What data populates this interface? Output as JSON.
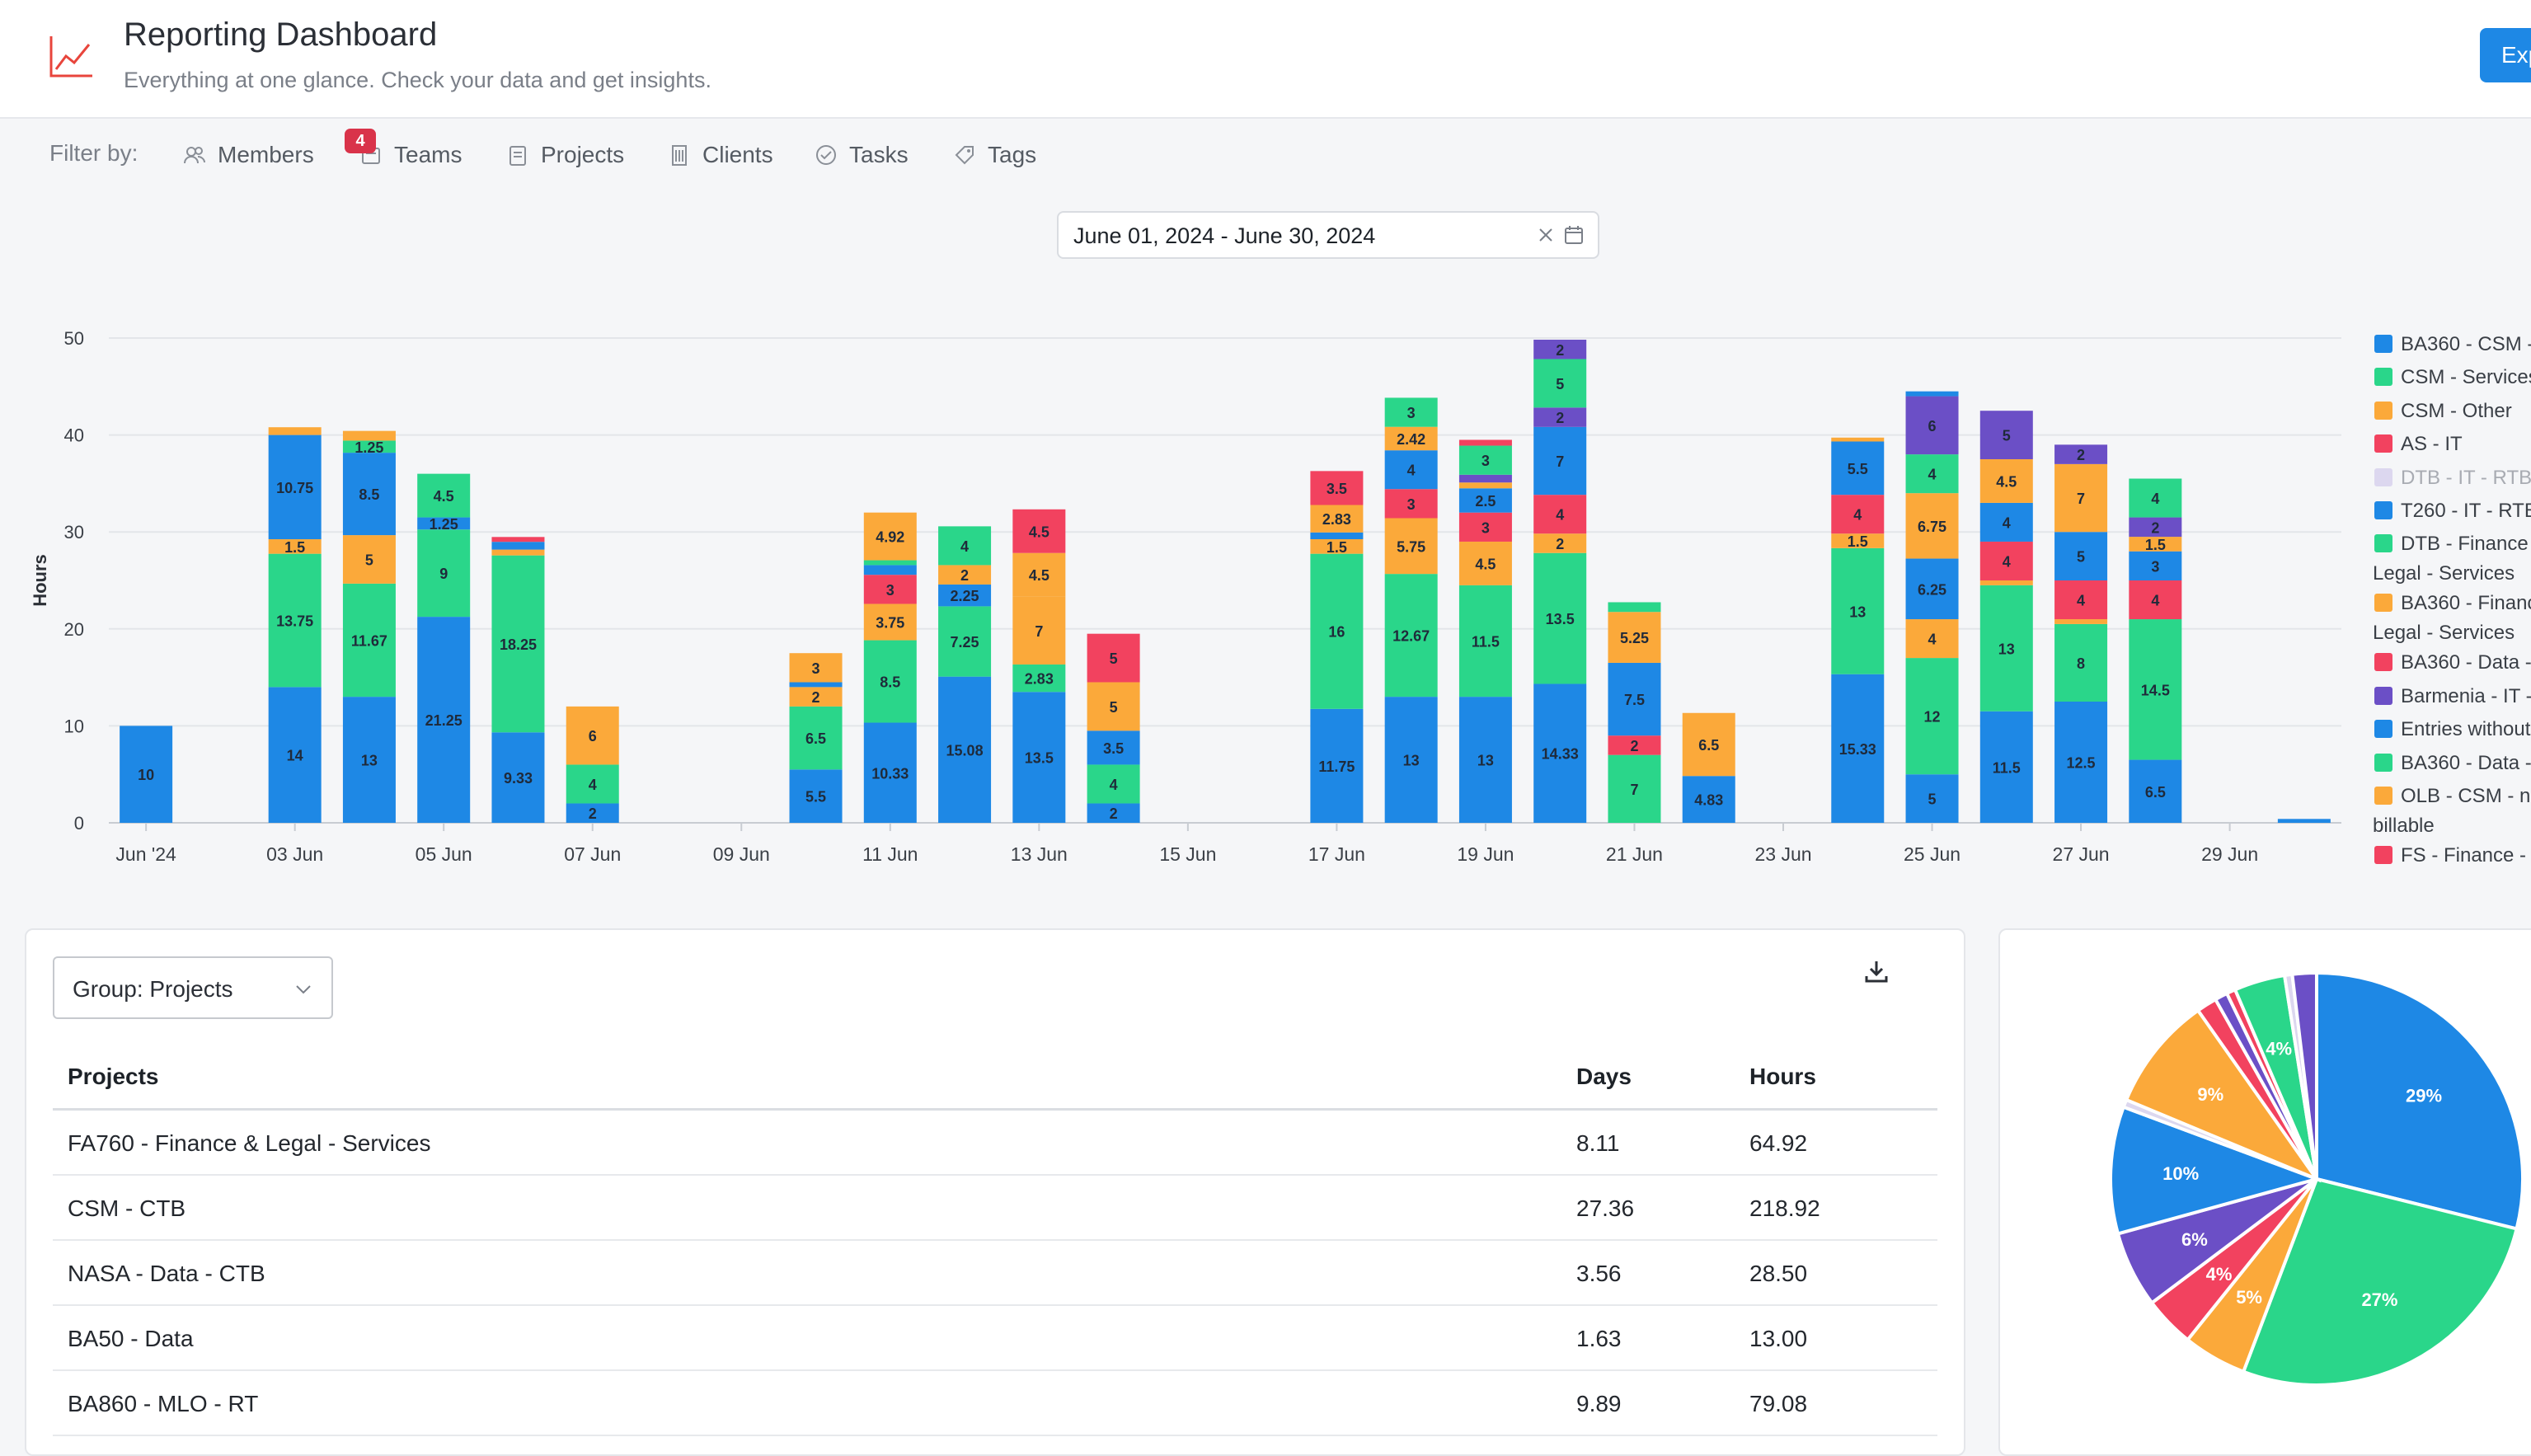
{
  "header": {
    "title": "Reporting Dashboard",
    "subtitle": "Everything at one glance. Check your data and get insights.",
    "export_label": "Exp"
  },
  "filters": {
    "label": "Filter by:",
    "items": [
      "Members",
      "Teams",
      "Projects",
      "Clients",
      "Tasks",
      "Tags"
    ],
    "teams_badge": "4"
  },
  "date_range": {
    "value": "June 01, 2024 - June 30, 2024"
  },
  "colors": {
    "blue": "#1e88e5",
    "green": "#2ad68a",
    "orange": "#fba93a",
    "red": "#f2425f",
    "lavender": "#dcd7ef",
    "purple": "#6b4fc6",
    "accent": "#1e88e5",
    "logo_red": "#e8453c"
  },
  "chart_data": {
    "type": "bar",
    "stacked": true,
    "ylabel": "Hours",
    "ylim": [
      0,
      50
    ],
    "yticks": [
      0,
      10,
      20,
      30,
      40,
      50
    ],
    "grid": true,
    "legend_position": "right",
    "xtick_labels": [
      "Jun '24",
      "03 Jun",
      "05 Jun",
      "07 Jun",
      "09 Jun",
      "11 Jun",
      "13 Jun",
      "15 Jun",
      "17 Jun",
      "19 Jun",
      "21 Jun",
      "23 Jun",
      "25 Jun",
      "27 Jun",
      "29 Jun"
    ],
    "categories": [
      "01 Jun",
      "02 Jun",
      "03 Jun",
      "04 Jun",
      "05 Jun",
      "06 Jun",
      "07 Jun",
      "08 Jun",
      "09 Jun",
      "10 Jun",
      "11 Jun",
      "12 Jun",
      "13 Jun",
      "14 Jun",
      "15 Jun",
      "16 Jun",
      "17 Jun",
      "18 Jun",
      "19 Jun",
      "20 Jun",
      "21 Jun",
      "22 Jun",
      "23 Jun",
      "24 Jun",
      "25 Jun",
      "26 Jun",
      "27 Jun",
      "28 Jun",
      "29 Jun",
      "30 Jun"
    ],
    "legend": [
      {
        "name": "BA360 - CSM -",
        "color": "#1e88e5"
      },
      {
        "name": "CSM - Services",
        "color": "#2ad68a"
      },
      {
        "name": "CSM - Other",
        "color": "#fba93a"
      },
      {
        "name": "AS - IT",
        "color": "#f2425f"
      },
      {
        "name": "DTB - IT - RTB",
        "color": "#dcd7ef"
      },
      {
        "name": "T260 - IT - RTB",
        "color": "#1e88e5"
      },
      {
        "name": "DTB - Finance",
        "line2": "Legal - Services",
        "color": "#2ad68a"
      },
      {
        "name": "BA360 - Finance",
        "line2": "Legal - Services",
        "color": "#fba93a"
      },
      {
        "name": "BA360 - Data -",
        "color": "#f2425f"
      },
      {
        "name": "Barmenia - IT -",
        "color": "#6b4fc6"
      },
      {
        "name": "Entries without",
        "color": "#1e88e5"
      },
      {
        "name": "BA360 - Data -",
        "color": "#2ad68a"
      },
      {
        "name": "OLB - CSM - n",
        "line2": "billable",
        "color": "#fba93a"
      },
      {
        "name": "FS - Finance -",
        "color": "#f2425f"
      }
    ],
    "bars": [
      {
        "day": 1,
        "segments": [
          {
            "c": "blue",
            "v": 10,
            "label": "10"
          }
        ]
      },
      {
        "day": 2,
        "segments": []
      },
      {
        "day": 3,
        "segments": [
          {
            "c": "blue",
            "v": 14,
            "label": "14"
          },
          {
            "c": "green",
            "v": 13.75,
            "label": "13.75"
          },
          {
            "c": "orange",
            "v": 1.5,
            "label": "1.5"
          },
          {
            "c": "blue",
            "v": 10.75,
            "label": "10.75"
          },
          {
            "c": "orange",
            "v": 0.8
          }
        ]
      },
      {
        "day": 4,
        "segments": [
          {
            "c": "blue",
            "v": 13,
            "label": "13"
          },
          {
            "c": "green",
            "v": 11.67,
            "label": "11.67"
          },
          {
            "c": "orange",
            "v": 5,
            "label": "5"
          },
          {
            "c": "blue",
            "v": 8.5,
            "label": "8.5"
          },
          {
            "c": "green",
            "v": 1.25,
            "label": "1.25"
          },
          {
            "c": "orange",
            "v": 1
          }
        ]
      },
      {
        "day": 5,
        "segments": [
          {
            "c": "blue",
            "v": 21.25,
            "label": "21.25"
          },
          {
            "c": "green",
            "v": 9,
            "label": "9"
          },
          {
            "c": "blue",
            "v": 1.25,
            "label": "1.25"
          },
          {
            "c": "green",
            "v": 4.5,
            "label": "4.5"
          }
        ]
      },
      {
        "day": 6,
        "segments": [
          {
            "c": "blue",
            "v": 9.33,
            "label": "9.33"
          },
          {
            "c": "green",
            "v": 18.25,
            "label": "18.25"
          },
          {
            "c": "orange",
            "v": 0.6
          },
          {
            "c": "blue",
            "v": 0.8
          },
          {
            "c": "red",
            "v": 0.5
          }
        ]
      },
      {
        "day": 7,
        "segments": [
          {
            "c": "blue",
            "v": 2,
            "label": "2"
          },
          {
            "c": "green",
            "v": 4,
            "label": "4"
          },
          {
            "c": "orange",
            "v": 6,
            "label": "6"
          }
        ]
      },
      {
        "day": 8,
        "segments": []
      },
      {
        "day": 9,
        "segments": []
      },
      {
        "day": 10,
        "segments": [
          {
            "c": "blue",
            "v": 5.5,
            "label": "5.5"
          },
          {
            "c": "green",
            "v": 6.5,
            "label": "6.5"
          },
          {
            "c": "orange",
            "v": 2,
            "label": "2"
          },
          {
            "c": "blue",
            "v": 0.5
          },
          {
            "c": "orange",
            "v": 3,
            "label": "3"
          }
        ]
      },
      {
        "day": 11,
        "segments": [
          {
            "c": "blue",
            "v": 10.33,
            "label": "10.33"
          },
          {
            "c": "green",
            "v": 8.5,
            "label": "8.5"
          },
          {
            "c": "orange",
            "v": 3.75,
            "label": "3.75"
          },
          {
            "c": "red",
            "v": 3,
            "label": "3"
          },
          {
            "c": "blue",
            "v": 1
          },
          {
            "c": "green",
            "v": 0.5
          },
          {
            "c": "orange",
            "v": 4.92,
            "label": "4.92"
          }
        ]
      },
      {
        "day": 12,
        "segments": [
          {
            "c": "blue",
            "v": 15.08,
            "label": "15.08"
          },
          {
            "c": "green",
            "v": 7.25,
            "label": "7.25"
          },
          {
            "c": "blue",
            "v": 2.25,
            "label": "2.25"
          },
          {
            "c": "orange",
            "v": 2,
            "label": "2"
          },
          {
            "c": "green",
            "v": 4,
            "label": "4"
          }
        ]
      },
      {
        "day": 13,
        "segments": [
          {
            "c": "blue",
            "v": 13.5,
            "label": "13.5"
          },
          {
            "c": "green",
            "v": 2.83,
            "label": "2.83"
          },
          {
            "c": "orange",
            "v": 7,
            "label": "7"
          },
          {
            "c": "orange",
            "v": 4.5,
            "label": "4.5"
          },
          {
            "c": "red",
            "v": 4.5,
            "label": "4.5"
          }
        ]
      },
      {
        "day": 14,
        "segments": [
          {
            "c": "blue",
            "v": 2,
            "label": "2"
          },
          {
            "c": "green",
            "v": 4,
            "label": "4"
          },
          {
            "c": "blue",
            "v": 3.5,
            "label": "3.5"
          },
          {
            "c": "orange",
            "v": 5,
            "label": "5"
          },
          {
            "c": "red",
            "v": 5,
            "label": "5"
          }
        ]
      },
      {
        "day": 15,
        "segments": []
      },
      {
        "day": 16,
        "segments": []
      },
      {
        "day": 17,
        "segments": [
          {
            "c": "blue",
            "v": 11.75,
            "label": "11.75"
          },
          {
            "c": "green",
            "v": 16,
            "label": "16"
          },
          {
            "c": "orange",
            "v": 1.5,
            "label": "1.5"
          },
          {
            "c": "blue",
            "v": 0.7
          },
          {
            "c": "orange",
            "v": 2.83,
            "label": "2.83"
          },
          {
            "c": "red",
            "v": 3.5,
            "label": "3.5"
          }
        ]
      },
      {
        "day": 18,
        "segments": [
          {
            "c": "blue",
            "v": 13,
            "label": "13"
          },
          {
            "c": "green",
            "v": 12.67,
            "label": "12.67"
          },
          {
            "c": "orange",
            "v": 5.75,
            "label": "5.75"
          },
          {
            "c": "red",
            "v": 3,
            "label": "3"
          },
          {
            "c": "blue",
            "v": 4,
            "label": "4"
          },
          {
            "c": "orange",
            "v": 2.42,
            "label": "2.42"
          },
          {
            "c": "green",
            "v": 3,
            "label": "3"
          }
        ]
      },
      {
        "day": 19,
        "segments": [
          {
            "c": "blue",
            "v": 13,
            "label": "13"
          },
          {
            "c": "green",
            "v": 11.5,
            "label": "11.5"
          },
          {
            "c": "orange",
            "v": 4.5,
            "label": "4.5"
          },
          {
            "c": "red",
            "v": 3,
            "label": "3"
          },
          {
            "c": "blue",
            "v": 2.5,
            "label": "2.5"
          },
          {
            "c": "orange",
            "v": 0.6
          },
          {
            "c": "purple",
            "v": 0.8
          },
          {
            "c": "green",
            "v": 3,
            "label": "3"
          },
          {
            "c": "red",
            "v": 0.6
          }
        ]
      },
      {
        "day": 20,
        "segments": [
          {
            "c": "blue",
            "v": 14.33,
            "label": "14.33"
          },
          {
            "c": "green",
            "v": 13.5,
            "label": "13.5"
          },
          {
            "c": "orange",
            "v": 2,
            "label": "2"
          },
          {
            "c": "red",
            "v": 4,
            "label": "4"
          },
          {
            "c": "blue",
            "v": 7,
            "label": "7"
          },
          {
            "c": "purple",
            "v": 2,
            "label": "2"
          },
          {
            "c": "green",
            "v": 5,
            "label": "5"
          },
          {
            "c": "purple",
            "v": 2,
            "label": "2"
          }
        ]
      },
      {
        "day": 21,
        "segments": [
          {
            "c": "green",
            "v": 7,
            "label": "7"
          },
          {
            "c": "red",
            "v": 2,
            "label": "2"
          },
          {
            "c": "blue",
            "v": 7.5,
            "label": "7.5"
          },
          {
            "c": "orange",
            "v": 5.25,
            "label": "5.25"
          },
          {
            "c": "green",
            "v": 1
          }
        ]
      },
      {
        "day": 22,
        "segments": [
          {
            "c": "blue",
            "v": 4.83,
            "label": "4.83"
          },
          {
            "c": "orange",
            "v": 6.5,
            "label": "6.5"
          }
        ]
      },
      {
        "day": 23,
        "segments": []
      },
      {
        "day": 24,
        "segments": [
          {
            "c": "blue",
            "v": 15.33,
            "label": "15.33"
          },
          {
            "c": "green",
            "v": 13,
            "label": "13"
          },
          {
            "c": "orange",
            "v": 1.5,
            "label": "1.5"
          },
          {
            "c": "red",
            "v": 4,
            "label": "4"
          },
          {
            "c": "blue",
            "v": 5.5,
            "label": "5.5"
          },
          {
            "c": "orange",
            "v": 0.4
          }
        ]
      },
      {
        "day": 25,
        "segments": [
          {
            "c": "blue",
            "v": 5,
            "label": "5"
          },
          {
            "c": "green",
            "v": 12,
            "label": "12"
          },
          {
            "c": "orange",
            "v": 4,
            "label": "4"
          },
          {
            "c": "blue",
            "v": 6.25,
            "label": "6.25"
          },
          {
            "c": "orange",
            "v": 6.75,
            "label": "6.75"
          },
          {
            "c": "green",
            "v": 4,
            "label": "4"
          },
          {
            "c": "purple",
            "v": 6,
            "label": "6"
          },
          {
            "c": "blue",
            "v": 0.5
          }
        ]
      },
      {
        "day": 26,
        "segments": [
          {
            "c": "blue",
            "v": 11.5,
            "label": "11.5"
          },
          {
            "c": "green",
            "v": 13,
            "label": "13"
          },
          {
            "c": "orange",
            "v": 0.5
          },
          {
            "c": "red",
            "v": 4,
            "label": "4"
          },
          {
            "c": "blue",
            "v": 4,
            "label": "4"
          },
          {
            "c": "orange",
            "v": 4.5,
            "label": "4.5"
          },
          {
            "c": "purple",
            "v": 5,
            "label": "5"
          }
        ]
      },
      {
        "day": 27,
        "segments": [
          {
            "c": "blue",
            "v": 12.5,
            "label": "12.5"
          },
          {
            "c": "green",
            "v": 8,
            "label": "8"
          },
          {
            "c": "orange",
            "v": 0.5
          },
          {
            "c": "red",
            "v": 4,
            "label": "4"
          },
          {
            "c": "blue",
            "v": 5,
            "label": "5"
          },
          {
            "c": "orange",
            "v": 7,
            "label": "7"
          },
          {
            "c": "purple",
            "v": 2,
            "label": "2"
          }
        ]
      },
      {
        "day": 28,
        "segments": [
          {
            "c": "blue",
            "v": 6.5,
            "label": "6.5"
          },
          {
            "c": "green",
            "v": 14.5,
            "label": "14.5"
          },
          {
            "c": "red",
            "v": 4,
            "label": "4"
          },
          {
            "c": "blue",
            "v": 3,
            "label": "3"
          },
          {
            "c": "orange",
            "v": 1.5,
            "label": "1.5"
          },
          {
            "c": "purple",
            "v": 2,
            "label": "2"
          },
          {
            "c": "green",
            "v": 4,
            "label": "4"
          }
        ]
      },
      {
        "day": 29,
        "segments": []
      },
      {
        "day": 30,
        "segments": [
          {
            "c": "blue",
            "v": 0.4
          }
        ]
      }
    ]
  },
  "table": {
    "group_label": "Group: Projects",
    "headers": [
      "Projects",
      "Days",
      "Hours"
    ],
    "rows": [
      [
        "FA760 - Finance & Legal - Services",
        "8.11",
        "64.92"
      ],
      [
        "CSM - CTB",
        "27.36",
        "218.92"
      ],
      [
        "NASA - Data - CTB",
        "3.56",
        "28.50"
      ],
      [
        "BA50 - Data",
        "1.63",
        "13.00"
      ],
      [
        "BA860 - MLO - RT",
        "9.89",
        "79.08"
      ]
    ]
  },
  "pie": {
    "slices": [
      {
        "v": 29,
        "c": "blue",
        "label": "29%"
      },
      {
        "v": 27,
        "c": "green",
        "label": "27%"
      },
      {
        "v": 5,
        "c": "orange",
        "label": "5%"
      },
      {
        "v": 4,
        "c": "red",
        "label": "4%"
      },
      {
        "v": 6,
        "c": "purple",
        "label": "6%"
      },
      {
        "v": 10,
        "c": "blue",
        "label": "10%"
      },
      {
        "v": 0.6,
        "c": "lavender"
      },
      {
        "v": 9,
        "c": "orange",
        "label": "9%"
      },
      {
        "v": 1.6,
        "c": "red"
      },
      {
        "v": 1,
        "c": "purple"
      },
      {
        "v": 0.7,
        "c": "red"
      },
      {
        "v": 4,
        "c": "green",
        "label": "4%"
      },
      {
        "v": 0.6,
        "c": "lavender"
      },
      {
        "v": 1.9,
        "c": "purple"
      }
    ]
  }
}
